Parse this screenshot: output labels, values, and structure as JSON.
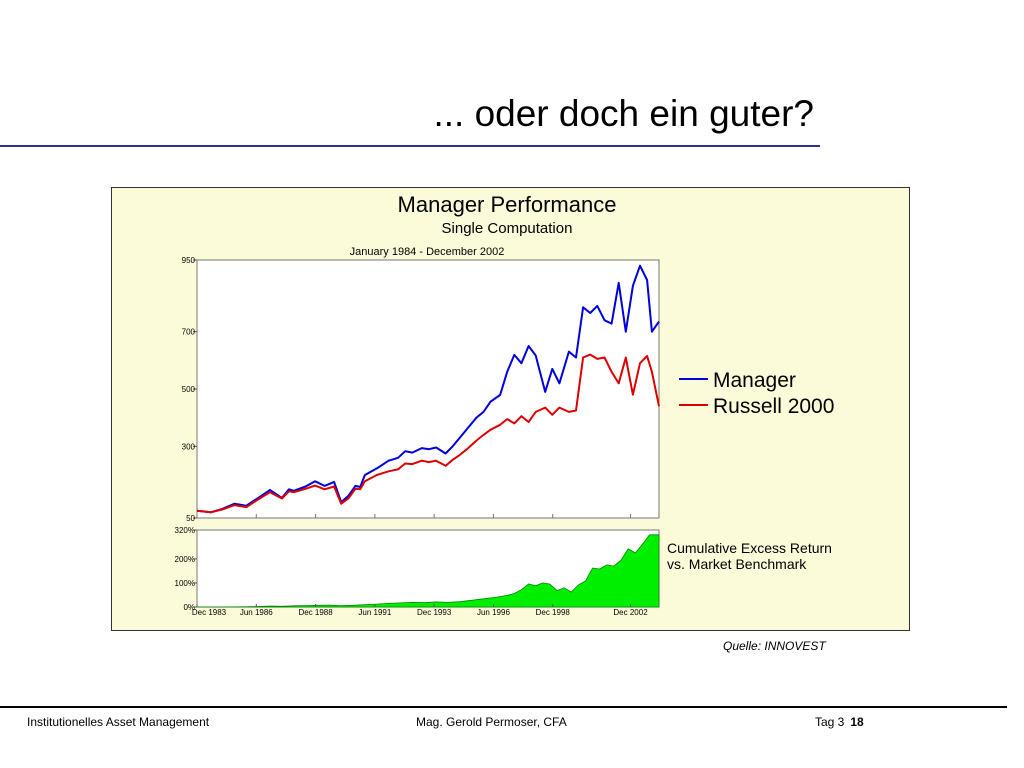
{
  "slide": {
    "title": "... oder doch ein guter?",
    "source": "Quelle: INNOVEST",
    "footer": {
      "left": "Institutionelles Asset Management",
      "center": "Mag. Gerold Permoser, CFA",
      "day": "Tag 3",
      "page": "18"
    }
  },
  "colors": {
    "manager": "#0000dd",
    "benchmark": "#dd0000",
    "excess_fill": "#00ee00",
    "frame_bg": "#fbfbd9"
  },
  "chart_data": [
    {
      "type": "line",
      "title": "Manager Performance",
      "subtitle": "Single Computation",
      "period": "January 1984 - December 2002",
      "ylim": [
        50,
        950
      ],
      "yticks": [
        50,
        300,
        500,
        700,
        950
      ],
      "xlim": [
        1983.92,
        2003.4
      ],
      "legend_position": "right",
      "series": [
        {
          "name": "Manager",
          "x": [
            1983.92,
            1984.5,
            1985,
            1985.5,
            1986,
            1986.5,
            1987,
            1987.5,
            1987.8,
            1988,
            1988.5,
            1988.9,
            1989.3,
            1989.7,
            1990,
            1990.3,
            1990.6,
            1990.8,
            1991,
            1991.5,
            1992,
            1992.4,
            1992.7,
            1993,
            1993.4,
            1993.7,
            1994,
            1994.4,
            1994.7,
            1995,
            1995.3,
            1995.7,
            1996,
            1996.3,
            1996.7,
            1997,
            1997.3,
            1997.6,
            1997.9,
            1998.2,
            1998.6,
            1998.9,
            1999.2,
            1999.6,
            1999.9,
            2000.2,
            2000.5,
            2000.8,
            2001.1,
            2001.4,
            2001.7,
            2002,
            2002.3,
            2002.6,
            2002.9,
            2003.1,
            2003.4
          ],
          "values": [
            75,
            70,
            82,
            100,
            93,
            120,
            148,
            120,
            150,
            145,
            160,
            178,
            162,
            176,
            105,
            127,
            162,
            158,
            200,
            223,
            250,
            260,
            283,
            278,
            294,
            290,
            296,
            275,
            300,
            330,
            360,
            400,
            420,
            456,
            479,
            560,
            619,
            590,
            650,
            617,
            490,
            570,
            520,
            630,
            610,
            785,
            765,
            790,
            740,
            728,
            870,
            700,
            860,
            930,
            880,
            700,
            735
          ]
        },
        {
          "name": "Russell 2000",
          "x": [
            1983.92,
            1984.5,
            1985,
            1985.5,
            1986,
            1986.5,
            1987,
            1987.5,
            1987.8,
            1988,
            1988.5,
            1988.9,
            1989.3,
            1989.7,
            1990,
            1990.3,
            1990.6,
            1990.8,
            1991,
            1991.5,
            1992,
            1992.4,
            1992.7,
            1993,
            1993.4,
            1993.7,
            1994,
            1994.4,
            1994.7,
            1995,
            1995.3,
            1995.7,
            1996,
            1996.3,
            1996.7,
            1997,
            1997.3,
            1997.6,
            1997.9,
            1998.2,
            1998.6,
            1998.9,
            1999.2,
            1999.6,
            1999.9,
            2000.2,
            2000.5,
            2000.8,
            2001.1,
            2001.4,
            2001.7,
            2002,
            2002.3,
            2002.6,
            2002.9,
            2003.1,
            2003.4
          ],
          "values": [
            75,
            70,
            80,
            95,
            88,
            115,
            140,
            118,
            143,
            140,
            152,
            163,
            150,
            160,
            100,
            118,
            152,
            150,
            178,
            200,
            213,
            220,
            240,
            238,
            250,
            245,
            250,
            232,
            253,
            270,
            290,
            320,
            340,
            358,
            375,
            395,
            380,
            405,
            385,
            420,
            435,
            410,
            435,
            420,
            425,
            610,
            620,
            605,
            610,
            560,
            520,
            610,
            480,
            590,
            615,
            560,
            440
          ]
        }
      ]
    },
    {
      "type": "area",
      "title": "Cumulative Excess Return\nvs. Market Benchmark",
      "label_line1": "Cumulative Excess Return",
      "label_line2": "vs. Market Benchmark",
      "ylim": [
        0,
        320
      ],
      "yticks": [
        0,
        100,
        200,
        320
      ],
      "ytick_labels": [
        "0%",
        "100%",
        "200%",
        "320%"
      ],
      "xtick_labels": [
        "Dec 1983",
        "Jun 1986",
        "Dec 1988",
        "Jun 1991",
        "Dec 1993",
        "Jun 1996",
        "Dec 1998",
        "Dec 2002"
      ],
      "xtick_values": [
        1983.92,
        1986.42,
        1988.92,
        1991.42,
        1993.92,
        1996.42,
        1998.92,
        2002.2
      ],
      "xlim": [
        1983.92,
        2003.4
      ],
      "series": [
        {
          "name": "",
          "x": [
            1983.92,
            1985,
            1986,
            1986.5,
            1987,
            1987.5,
            1988,
            1988.5,
            1989,
            1989.5,
            1990,
            1990.5,
            1991,
            1991.5,
            1992,
            1992.5,
            1993,
            1993.5,
            1994,
            1994.5,
            1995,
            1995.5,
            1996,
            1996.5,
            1997,
            1997.3,
            1997.6,
            1997.9,
            1998.2,
            1998.5,
            1998.8,
            1999.1,
            1999.4,
            1999.7,
            2000,
            2000.3,
            2000.6,
            2000.9,
            2001.2,
            2001.5,
            2001.8,
            2002.1,
            2002.4,
            2002.7,
            2003,
            2003.4
          ],
          "values": [
            0,
            0,
            1,
            2,
            4,
            3,
            5,
            6,
            7,
            8,
            6,
            7,
            10,
            12,
            15,
            17,
            19,
            18,
            21,
            19,
            22,
            28,
            34,
            40,
            48,
            56,
            72,
            96,
            88,
            100,
            95,
            68,
            80,
            62,
            92,
            108,
            162,
            158,
            175,
            170,
            195,
            242,
            225,
            260,
            300,
            300
          ]
        }
      ]
    }
  ]
}
